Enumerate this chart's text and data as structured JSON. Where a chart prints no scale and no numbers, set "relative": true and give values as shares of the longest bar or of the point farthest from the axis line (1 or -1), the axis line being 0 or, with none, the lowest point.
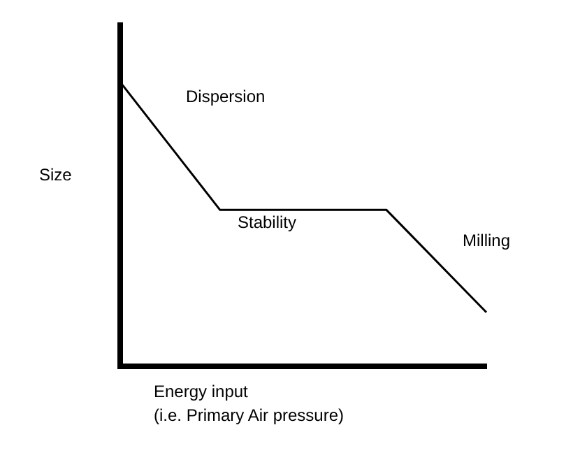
{
  "chart_data": {
    "type": "line",
    "relative": true,
    "ylabel": "Size",
    "xlabel": "Energy input\n(i.e. Primary Air pressure)",
    "categories": [
      null,
      null,
      null,
      null,
      null,
      null,
      null,
      null,
      null,
      null,
      null,
      null
    ],
    "series": [
      {
        "color": "#000000",
        "values": [
          1,
          0.85,
          0.7,
          0.55,
          0.55,
          0.55,
          0.55,
          0.55,
          0.55,
          0.43,
          0.31,
          0.19
        ]
      }
    ],
    "annotations": [
      "Dispersion",
      "Stability",
      "Milling"
    ],
    "marker": "none",
    "line_style": "solid",
    "grid": false,
    "legend": false
  }
}
